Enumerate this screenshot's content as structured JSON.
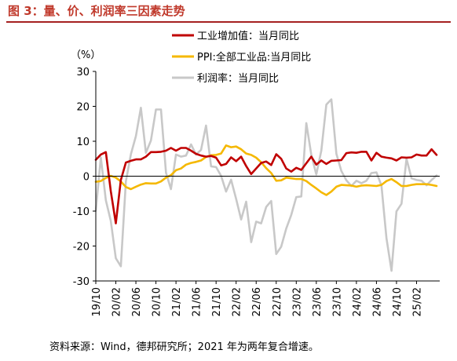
{
  "figure": {
    "title": "图 3：量、价、利润率三因素走势",
    "source": "资料来源：Wind，德邦研究所；2021 年为两年复合增速。"
  },
  "chart_data": {
    "type": "line",
    "unit_label": "（%）",
    "ylim": [
      -30,
      30
    ],
    "yticks": [
      30,
      20,
      10,
      0,
      -10,
      -20,
      -30
    ],
    "x_tick_labels": [
      "19/10",
      "20/02",
      "20/06",
      "20/10",
      "21/02",
      "21/06",
      "21/10",
      "22/02",
      "22/06",
      "22/10",
      "23/02",
      "23/06",
      "23/10",
      "24/02",
      "24/06",
      "24/10",
      "25/02"
    ],
    "x_start": "2019-10",
    "legend_position": "top",
    "series": [
      {
        "name": "工业增加值：当月同比",
        "color": "#c00000",
        "values": [
          4.7,
          6.2,
          6.9,
          -4.3,
          -13.5,
          -1.1,
          3.9,
          4.4,
          4.8,
          4.8,
          5.6,
          6.9,
          6.9,
          7.0,
          7.3,
          8.1,
          7.3,
          8.1,
          8.1,
          7.3,
          6.4,
          5.9,
          5.6,
          5.8,
          5.3,
          3.1,
          3.5,
          5.4,
          4.3,
          5.6,
          2.9,
          0.6,
          2.2,
          3.8,
          4.2,
          3.2,
          6.3,
          5.0,
          2.2,
          1.3,
          2.4,
          1.8,
          3.7,
          5.6,
          3.3,
          4.5,
          3.5,
          4.4,
          4.5,
          4.6,
          6.6,
          6.8,
          6.7,
          7.0,
          7.0,
          4.5,
          6.7,
          5.6,
          5.3,
          5.1,
          4.5,
          5.4,
          5.3,
          5.4,
          6.2,
          5.9,
          5.9,
          7.7,
          6.1
        ]
      },
      {
        "name": "PPI:全部工业品:当月同比",
        "color": "#f5b800",
        "values": [
          -1.6,
          -1.4,
          -0.5,
          0.1,
          -0.4,
          -1.5,
          -3.1,
          -3.7,
          -3.0,
          -2.4,
          -2.0,
          -2.1,
          -2.1,
          -1.5,
          -0.4,
          0.3,
          1.7,
          2.2,
          3.3,
          3.8,
          4.1,
          4.5,
          5.5,
          6.0,
          6.1,
          6.5,
          8.8,
          8.3,
          8.5,
          7.7,
          6.5,
          6.1,
          5.3,
          4.0,
          2.3,
          0.9,
          -1.3,
          -1.2,
          -0.4,
          -0.6,
          -0.8,
          -0.8,
          -1.4,
          -2.5,
          -3.5,
          -4.6,
          -5.4,
          -4.4,
          -3.0,
          -2.5,
          -2.6,
          -2.7,
          -3.0,
          -2.7,
          -2.6,
          -2.7,
          -2.8,
          -2.5,
          -1.4,
          -0.8,
          -1.7,
          -2.8,
          -2.8,
          -2.5,
          -2.3,
          -2.3,
          -2.3,
          -2.5,
          -2.8
        ]
      },
      {
        "name": "利润率：当月同比",
        "color": "#c8c8c8",
        "values": [
          -9.9,
          5.4,
          -6.9,
          -12.8,
          -23.5,
          -25.8,
          -1.5,
          6.3,
          11.5,
          19.6,
          6.7,
          10.2,
          19.1,
          19.1,
          1.0,
          -3.7,
          6.2,
          5.6,
          5.9,
          9.1,
          6.2,
          7.5,
          14.5,
          2.8,
          2.6,
          0.1,
          -4.4,
          -1.0,
          -6.5,
          -12.4,
          -7.3,
          -18.9,
          -13.0,
          -13.5,
          -8.8,
          -7.1,
          -22.3,
          -20.2,
          -15.0,
          -11.1,
          -6.0,
          -5.8,
          15.2,
          6.2,
          0.5,
          7.3,
          20.5,
          22.0,
          6.4,
          1.5,
          -1.2,
          -2.8,
          -1.3,
          -2.0,
          -1.3,
          0.9,
          1.1,
          -2.7,
          -17.8,
          -27.1,
          -10.1,
          -7.9,
          5.0,
          -0.6,
          -1.1,
          -1.3,
          -2.6,
          -1.1,
          0.2
        ]
      }
    ]
  }
}
